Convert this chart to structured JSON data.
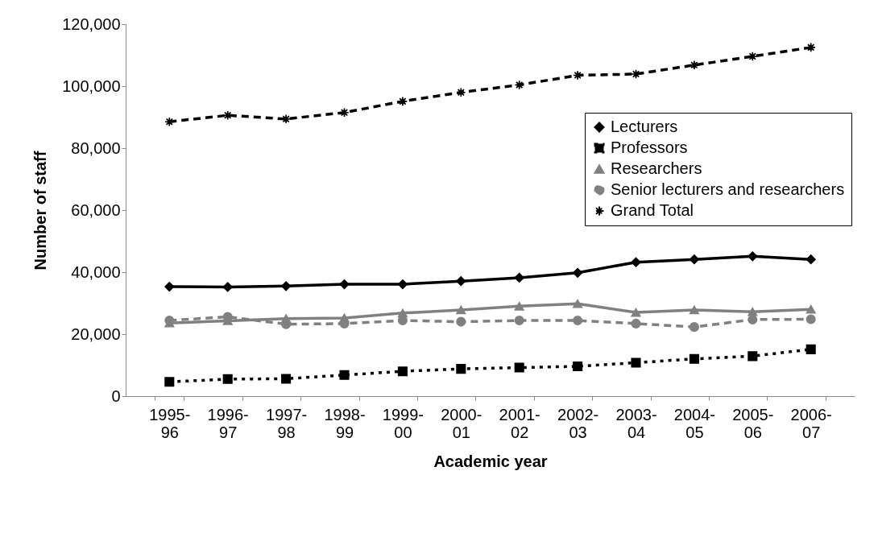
{
  "chart_data": {
    "type": "line",
    "xlabel": "Academic year",
    "ylabel": "Number of staff",
    "categories": [
      "1995-96",
      "1996-97",
      "1997-98",
      "1998-99",
      "1999-00",
      "2000-01",
      "2001-02",
      "2002-03",
      "2003-04",
      "2004-05",
      "2005-06",
      "2006-07"
    ],
    "series": [
      {
        "name": "Lecturers",
        "color": "#000000",
        "marker": "diamond",
        "line_style": "solid",
        "values": [
          35300,
          35200,
          35500,
          36100,
          36100,
          37100,
          38200,
          39800,
          43200,
          44100,
          45100,
          44100
        ]
      },
      {
        "name": "Professors",
        "color": "#000000",
        "marker": "square",
        "line_style": "dotted",
        "values": [
          4600,
          5500,
          5600,
          6800,
          8000,
          8800,
          9200,
          9600,
          10800,
          12000,
          12900,
          15100
        ]
      },
      {
        "name": "Researchers",
        "color": "#808080",
        "marker": "triangle",
        "line_style": "solid",
        "values": [
          23600,
          24300,
          25000,
          25200,
          26800,
          27800,
          29000,
          29800,
          27000,
          27800,
          27200,
          28000
        ]
      },
      {
        "name": "Senior lecturers and researchers",
        "color": "#808080",
        "marker": "circle",
        "line_style": "dashed",
        "values": [
          24400,
          25600,
          23200,
          23400,
          24400,
          24000,
          24400,
          24400,
          23400,
          22300,
          24700,
          24800
        ]
      },
      {
        "name": "Grand Total",
        "color": "#000000",
        "marker": "star",
        "line_style": "dashed",
        "values": [
          88500,
          90600,
          89400,
          91500,
          95100,
          98000,
          100400,
          103500,
          103900,
          106800,
          109600,
          112500
        ]
      }
    ],
    "ylim": [
      0,
      120000
    ],
    "yticks": [
      0,
      {
        "value": 20000,
        "label": "20,000"
      },
      {
        "value": 40000,
        "label": "40,000"
      },
      {
        "value": 60000,
        "label": "60,000"
      },
      {
        "value": 80000,
        "label": "80,000"
      },
      {
        "value": 100000,
        "label": "100,000"
      },
      {
        "value": 120000,
        "label": "120,000"
      }
    ],
    "legend": "right"
  }
}
